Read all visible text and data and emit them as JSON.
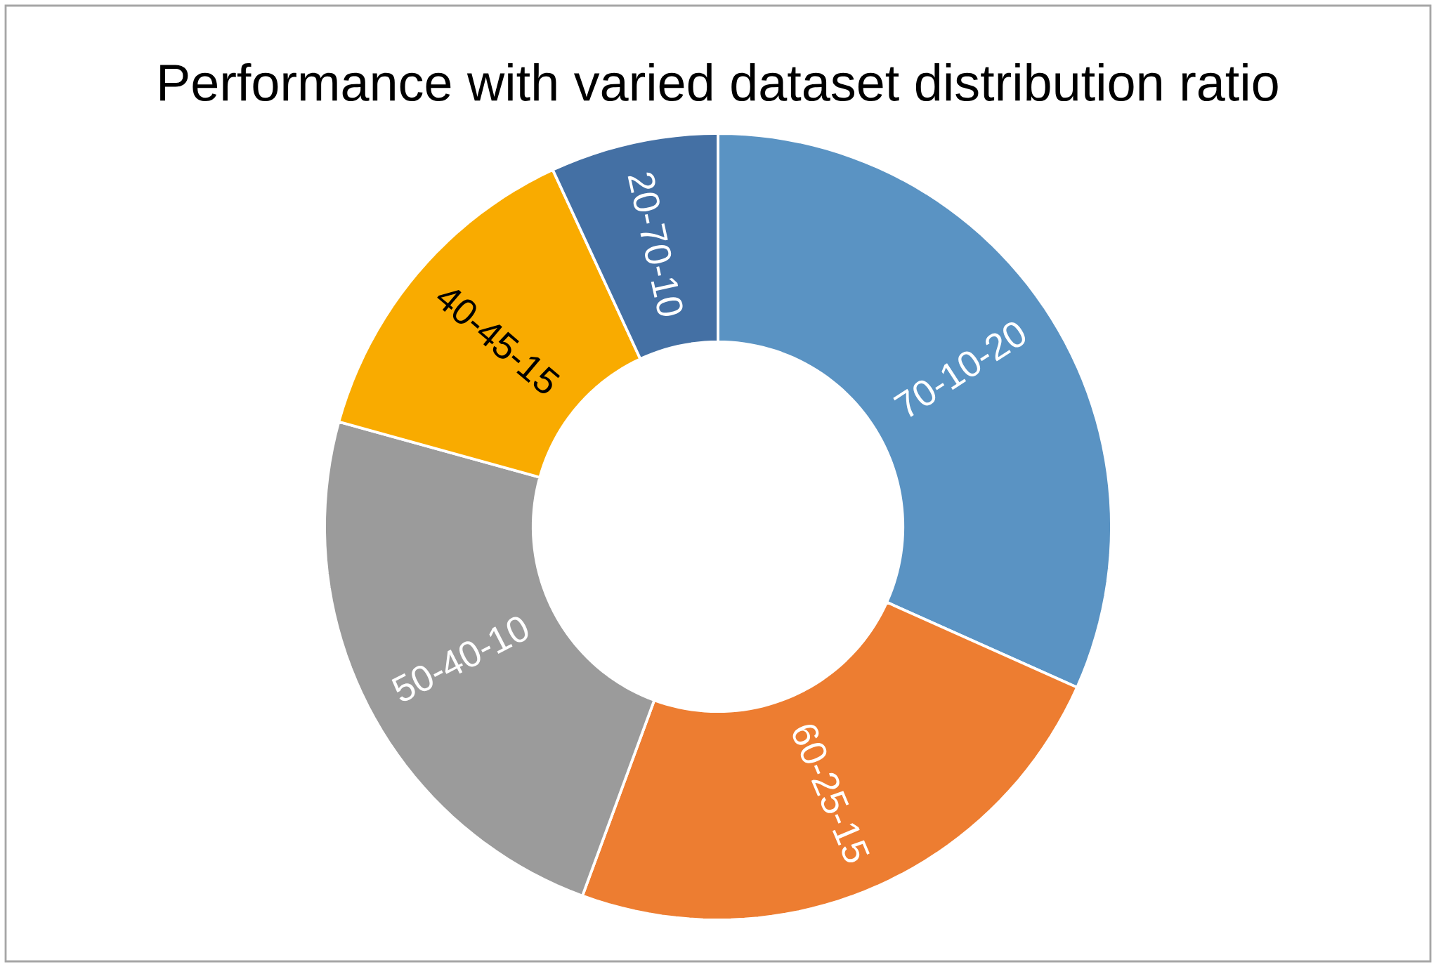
{
  "chart_data": {
    "type": "donut",
    "title": "Performance with varied dataset distribution ratio",
    "categories": [
      "70-10-20",
      "60-25-15",
      "50-40-10",
      "40-45-15",
      "20-70-10"
    ],
    "values": [
      31.7,
      23.9,
      23.7,
      13.8,
      6.9
    ],
    "colors": [
      "#5a93c3",
      "#ed7d31",
      "#9b9b9b",
      "#f9ab00",
      "#4470a4"
    ]
  }
}
